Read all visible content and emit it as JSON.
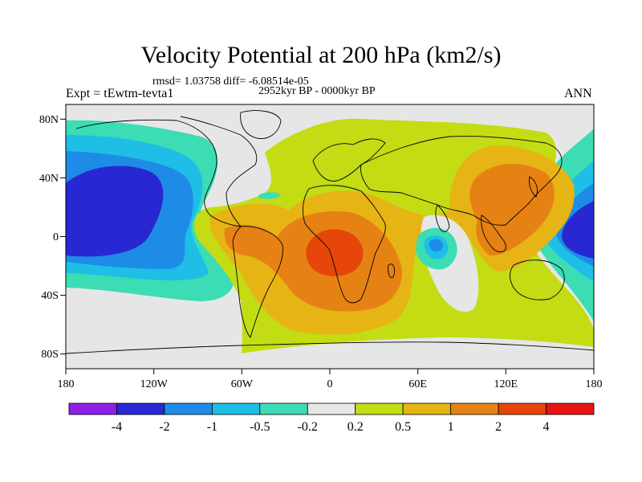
{
  "header": {
    "title": "Velocity Potential at 200 hPa (km2/s)",
    "stats": "rmsd= 1.03758 diff= -6.08514e-05",
    "experiment": "Expt = tEwtm-tevta1",
    "period": "2952kyr BP - 0000kyr BP",
    "season": "ANN"
  },
  "map": {
    "projection": "cylindrical equidistant",
    "lon_range": [
      -180,
      180
    ],
    "lat_range": [
      -90,
      90
    ],
    "x_ticks": [
      "180",
      "120W",
      "60W",
      "0",
      "60E",
      "120E",
      "180"
    ],
    "y_ticks": [
      "80N",
      "40N",
      "0",
      "40S",
      "80S"
    ]
  },
  "colorbar": {
    "labels": [
      "-4",
      "-2",
      "-1",
      "-0.5",
      "-0.2",
      "0.2",
      "0.5",
      "1",
      "2",
      "4"
    ],
    "colors": [
      "#8f1ee6",
      "#2828d2",
      "#1e8ce6",
      "#1ebee6",
      "#3cdcb4",
      "#e6e6e6",
      "#c3dc14",
      "#e6b414",
      "#e68214",
      "#e6460a",
      "#e61414"
    ]
  },
  "chart_data": {
    "type": "heatmap",
    "title": "Velocity Potential at 200 hPa (km2/s)",
    "variable": "velocity potential difference",
    "units": "km2/s",
    "levels": [
      -4,
      -2,
      -1,
      -0.5,
      -0.2,
      0.2,
      0.5,
      1,
      2,
      4
    ],
    "features": [
      {
        "region": "Central/Eastern Pacific (160E–120W)",
        "value": "-2 to -4"
      },
      {
        "region": "West Pacific near 150E–180 at equator",
        "value": "-2 to -4"
      },
      {
        "region": "Equatorial Africa / Gulf of Guinea",
        "value": "2 to 4"
      },
      {
        "region": "Maritime Continent / East Asia",
        "value": "1 to 2"
      },
      {
        "region": "Central Indian Ocean (75E, 10S)",
        "value": "-0.5 to -1"
      },
      {
        "region": "South Atlantic / Southern Ocean",
        "value": "0.2 to 1"
      }
    ]
  }
}
